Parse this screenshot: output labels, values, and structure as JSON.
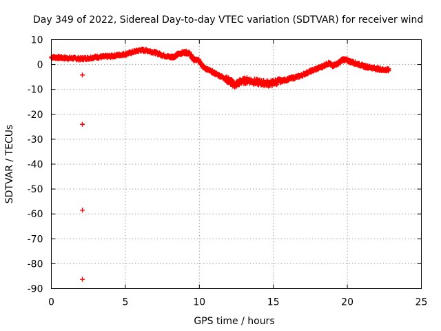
{
  "chart_data": {
    "type": "scatter",
    "title": "Day 349 of 2022, Sidereal Day-to-day VTEC variation (SDTVAR) for receiver wind",
    "xlabel": "GPS time / hours",
    "ylabel": "SDTVAR / TECUs",
    "xlim": [
      0,
      25
    ],
    "ylim": [
      -90,
      10
    ],
    "xticks": [
      0,
      5,
      10,
      15,
      20,
      25
    ],
    "yticks": [
      10,
      0,
      -10,
      -20,
      -30,
      -40,
      -50,
      -60,
      -70,
      -80,
      -90
    ],
    "grid": true,
    "marker": "+",
    "series_color": "#ff0000",
    "outliers": [
      {
        "x": 2.1,
        "y": -4.2
      },
      {
        "x": 2.1,
        "y": -24.0
      },
      {
        "x": 2.1,
        "y": -58.5
      },
      {
        "x": 2.1,
        "y": -86.3
      }
    ],
    "trend": [
      [
        0.0,
        3.0
      ],
      [
        0.5,
        2.8
      ],
      [
        1.0,
        2.6
      ],
      [
        1.5,
        2.5
      ],
      [
        2.0,
        2.3
      ],
      [
        2.5,
        2.6
      ],
      [
        3.0,
        3.0
      ],
      [
        3.5,
        3.1
      ],
      [
        4.0,
        3.3
      ],
      [
        4.5,
        3.8
      ],
      [
        5.0,
        4.2
      ],
      [
        5.5,
        5.0
      ],
      [
        6.0,
        5.8
      ],
      [
        6.5,
        5.6
      ],
      [
        7.0,
        4.8
      ],
      [
        7.5,
        3.8
      ],
      [
        8.0,
        3.0
      ],
      [
        8.3,
        3.2
      ],
      [
        8.6,
        4.3
      ],
      [
        9.0,
        4.9
      ],
      [
        9.3,
        4.6
      ],
      [
        9.6,
        2.0
      ],
      [
        10.0,
        1.5
      ],
      [
        10.3,
        -1.2
      ],
      [
        10.7,
        -2.5
      ],
      [
        11.2,
        -4.0
      ],
      [
        11.7,
        -5.5
      ],
      [
        12.0,
        -6.5
      ],
      [
        12.4,
        -8.2
      ],
      [
        12.8,
        -6.8
      ],
      [
        13.3,
        -6.3
      ],
      [
        13.8,
        -7.0
      ],
      [
        14.3,
        -7.4
      ],
      [
        14.8,
        -7.6
      ],
      [
        15.3,
        -6.8
      ],
      [
        15.8,
        -6.2
      ],
      [
        16.3,
        -5.4
      ],
      [
        16.8,
        -4.6
      ],
      [
        17.3,
        -3.2
      ],
      [
        17.8,
        -2.0
      ],
      [
        18.3,
        -0.8
      ],
      [
        18.7,
        0.5
      ],
      [
        19.0,
        -0.4
      ],
      [
        19.4,
        0.6
      ],
      [
        19.7,
        2.1
      ],
      [
        20.0,
        1.6
      ],
      [
        20.4,
        0.8
      ],
      [
        20.8,
        0.0
      ],
      [
        21.2,
        -0.8
      ],
      [
        21.6,
        -1.2
      ],
      [
        22.0,
        -1.7
      ],
      [
        22.4,
        -2.1
      ],
      [
        22.8,
        -2.2
      ]
    ]
  }
}
